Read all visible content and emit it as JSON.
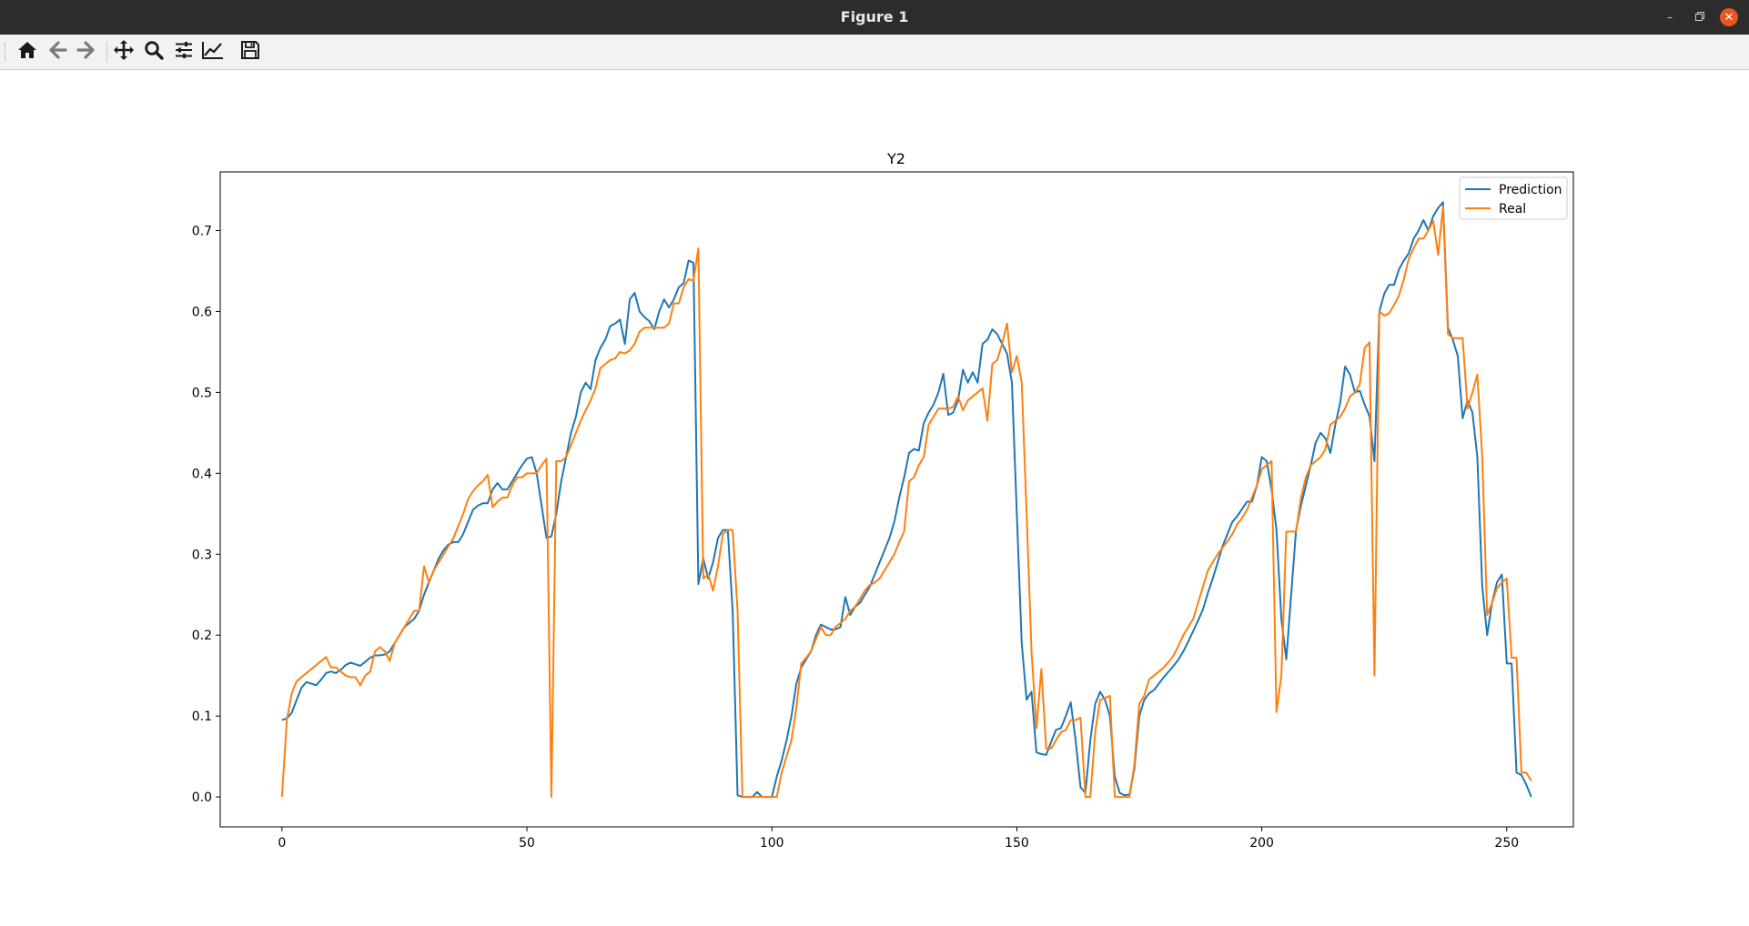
{
  "window": {
    "title": "Figure 1"
  },
  "toolbar": {
    "buttons": [
      {
        "name": "home-button",
        "icon": "home-icon"
      },
      {
        "name": "back-button",
        "icon": "arrow-left-icon"
      },
      {
        "name": "forward-button",
        "icon": "arrow-right-icon"
      },
      {
        "name": "pan-button",
        "icon": "move-icon"
      },
      {
        "name": "zoom-button",
        "icon": "magnifier-icon"
      },
      {
        "name": "subplots-button",
        "icon": "sliders-icon"
      },
      {
        "name": "edit-axes-button",
        "icon": "line-chart-icon"
      },
      {
        "name": "save-button",
        "icon": "floppy-disk-icon"
      }
    ]
  },
  "colors": {
    "prediction": "#1f77b4",
    "real": "#ff7f0e"
  },
  "chart_data": {
    "type": "line",
    "title": "Y2",
    "xlabel": "",
    "ylabel": "",
    "xlim": [
      -12.6,
      263.6
    ],
    "ylim": [
      -0.037,
      0.7725
    ],
    "x_ticks": [
      0,
      50,
      100,
      150,
      200,
      250
    ],
    "x_tick_labels": [
      "0",
      "50",
      "100",
      "150",
      "200",
      "250"
    ],
    "y_ticks": [
      0.0,
      0.1,
      0.2,
      0.3,
      0.4,
      0.5,
      0.6,
      0.7
    ],
    "y_tick_labels": [
      "0.0",
      "0.1",
      "0.2",
      "0.3",
      "0.4",
      "0.5",
      "0.6",
      "0.7"
    ],
    "grid": false,
    "legend": {
      "position": "top-right",
      "entries": [
        "Prediction",
        "Real"
      ]
    },
    "series": [
      {
        "name": "Prediction",
        "x_start": 0,
        "values": [
          0.095,
          0.097,
          0.104,
          0.12,
          0.135,
          0.142,
          0.14,
          0.138,
          0.145,
          0.153,
          0.155,
          0.153,
          0.157,
          0.163,
          0.166,
          0.164,
          0.162,
          0.167,
          0.172,
          0.175,
          0.175,
          0.176,
          0.18,
          0.19,
          0.2,
          0.21,
          0.215,
          0.22,
          0.23,
          0.25,
          0.265,
          0.28,
          0.295,
          0.305,
          0.312,
          0.315,
          0.315,
          0.325,
          0.34,
          0.355,
          0.36,
          0.363,
          0.363,
          0.38,
          0.388,
          0.38,
          0.38,
          0.39,
          0.4,
          0.41,
          0.418,
          0.42,
          0.4,
          0.36,
          0.32,
          0.322,
          0.35,
          0.39,
          0.42,
          0.45,
          0.47,
          0.5,
          0.512,
          0.504,
          0.54,
          0.555,
          0.565,
          0.582,
          0.585,
          0.59,
          0.56,
          0.615,
          0.623,
          0.6,
          0.593,
          0.588,
          0.578,
          0.6,
          0.615,
          0.605,
          0.615,
          0.63,
          0.635,
          0.663,
          0.66,
          0.263,
          0.295,
          0.27,
          0.29,
          0.32,
          0.33,
          0.33,
          0.23,
          0.002,
          0.0,
          0.0,
          0.0,
          0.006,
          0.0,
          0.0,
          0.0,
          0.025,
          0.045,
          0.07,
          0.1,
          0.14,
          0.16,
          0.17,
          0.18,
          0.2,
          0.213,
          0.21,
          0.207,
          0.207,
          0.21,
          0.247,
          0.225,
          0.235,
          0.24,
          0.25,
          0.26,
          0.275,
          0.29,
          0.305,
          0.32,
          0.34,
          0.37,
          0.395,
          0.425,
          0.43,
          0.428,
          0.462,
          0.475,
          0.485,
          0.5,
          0.523,
          0.472,
          0.475,
          0.49,
          0.528,
          0.512,
          0.525,
          0.512,
          0.56,
          0.565,
          0.578,
          0.572,
          0.56,
          0.548,
          0.512,
          0.35,
          0.19,
          0.12,
          0.13,
          0.055,
          0.053,
          0.052,
          0.068,
          0.083,
          0.085,
          0.1,
          0.117,
          0.07,
          0.012,
          0.005,
          0.07,
          0.115,
          0.13,
          0.12,
          0.1,
          0.025,
          0.005,
          0.002,
          0.003,
          0.035,
          0.1,
          0.12,
          0.128,
          0.132,
          0.14,
          0.148,
          0.155,
          0.162,
          0.17,
          0.18,
          0.192,
          0.205,
          0.218,
          0.232,
          0.252,
          0.27,
          0.29,
          0.31,
          0.325,
          0.34,
          0.347,
          0.356,
          0.365,
          0.365,
          0.385,
          0.42,
          0.415,
          0.38,
          0.33,
          0.22,
          0.17,
          0.25,
          0.33,
          0.36,
          0.385,
          0.41,
          0.438,
          0.45,
          0.443,
          0.425,
          0.46,
          0.487,
          0.532,
          0.522,
          0.5,
          0.502,
          0.485,
          0.47,
          0.415,
          0.6,
          0.622,
          0.633,
          0.633,
          0.652,
          0.663,
          0.672,
          0.69,
          0.7,
          0.713,
          0.7,
          0.718,
          0.728,
          0.735,
          0.58,
          0.565,
          0.545,
          0.468,
          0.49,
          0.475,
          0.42,
          0.26,
          0.2,
          0.24,
          0.265,
          0.275,
          0.165,
          0.165,
          0.03,
          0.027,
          0.015,
          0.0
        ]
      },
      {
        "name": "Real",
        "x_start": 0,
        "values": [
          0.0,
          0.095,
          0.128,
          0.143,
          0.148,
          0.153,
          0.158,
          0.163,
          0.168,
          0.173,
          0.16,
          0.16,
          0.155,
          0.15,
          0.148,
          0.148,
          0.138,
          0.15,
          0.155,
          0.18,
          0.185,
          0.18,
          0.168,
          0.19,
          0.2,
          0.21,
          0.22,
          0.23,
          0.23,
          0.285,
          0.265,
          0.28,
          0.29,
          0.3,
          0.31,
          0.32,
          0.335,
          0.35,
          0.368,
          0.378,
          0.385,
          0.39,
          0.398,
          0.358,
          0.365,
          0.37,
          0.37,
          0.385,
          0.395,
          0.395,
          0.4,
          0.4,
          0.4,
          0.41,
          0.418,
          0.0,
          0.415,
          0.415,
          0.42,
          0.435,
          0.45,
          0.465,
          0.478,
          0.49,
          0.505,
          0.53,
          0.535,
          0.54,
          0.542,
          0.55,
          0.548,
          0.552,
          0.56,
          0.575,
          0.58,
          0.58,
          0.58,
          0.58,
          0.58,
          0.585,
          0.61,
          0.61,
          0.63,
          0.64,
          0.638,
          0.678,
          0.27,
          0.275,
          0.255,
          0.285,
          0.325,
          0.33,
          0.33,
          0.23,
          0.0,
          0.0,
          0.0,
          0.0,
          0.0,
          0.0,
          0.0,
          0.0,
          0.03,
          0.05,
          0.07,
          0.11,
          0.165,
          0.172,
          0.18,
          0.195,
          0.21,
          0.2,
          0.2,
          0.21,
          0.215,
          0.22,
          0.23,
          0.235,
          0.245,
          0.255,
          0.262,
          0.265,
          0.27,
          0.28,
          0.29,
          0.3,
          0.315,
          0.328,
          0.39,
          0.395,
          0.41,
          0.42,
          0.46,
          0.47,
          0.48,
          0.48,
          0.48,
          0.482,
          0.495,
          0.478,
          0.49,
          0.495,
          0.5,
          0.505,
          0.465,
          0.535,
          0.54,
          0.56,
          0.585,
          0.525,
          0.545,
          0.512,
          0.35,
          0.18,
          0.085,
          0.158,
          0.06,
          0.06,
          0.07,
          0.08,
          0.083,
          0.095,
          0.095,
          0.098,
          0.0,
          0.0,
          0.08,
          0.12,
          0.122,
          0.125,
          0.0,
          0.0,
          0.0,
          0.0,
          0.04,
          0.115,
          0.125,
          0.145,
          0.15,
          0.155,
          0.16,
          0.167,
          0.175,
          0.187,
          0.2,
          0.21,
          0.22,
          0.24,
          0.26,
          0.28,
          0.29,
          0.3,
          0.308,
          0.316,
          0.325,
          0.337,
          0.345,
          0.355,
          0.37,
          0.385,
          0.405,
          0.41,
          0.415,
          0.105,
          0.15,
          0.328,
          0.328,
          0.328,
          0.37,
          0.395,
          0.41,
          0.415,
          0.42,
          0.43,
          0.46,
          0.465,
          0.47,
          0.48,
          0.495,
          0.5,
          0.51,
          0.555,
          0.562,
          0.15,
          0.6,
          0.595,
          0.598,
          0.608,
          0.62,
          0.64,
          0.665,
          0.678,
          0.69,
          0.69,
          0.7,
          0.712,
          0.67,
          0.73,
          0.572,
          0.567,
          0.567,
          0.567,
          0.48,
          0.5,
          0.522,
          0.42,
          0.225,
          0.24,
          0.258,
          0.265,
          0.27,
          0.172,
          0.172,
          0.03,
          0.03,
          0.02
        ]
      }
    ]
  }
}
